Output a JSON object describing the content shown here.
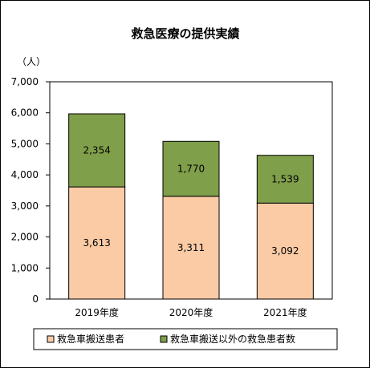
{
  "chart_data": {
    "type": "bar",
    "stacked": true,
    "title": "救急医療の提供実績",
    "unit_label": "（人）",
    "categories": [
      "2019年度",
      "2020年度",
      "2021年度"
    ],
    "series": [
      {
        "name": "救急車搬送患者",
        "values": [
          3613,
          3311,
          3092
        ],
        "labels": [
          "3,613",
          "3,311",
          "3,092"
        ],
        "color": "#FBCBA6"
      },
      {
        "name": "救急車搬送以外の救急患者数",
        "values": [
          2354,
          1770,
          1539
        ],
        "labels": [
          "2,354",
          "1,770",
          "1,539"
        ],
        "color": "#7F9F4A"
      }
    ],
    "ylim": [
      0,
      7000
    ],
    "yticks": [
      0,
      1000,
      2000,
      3000,
      4000,
      5000,
      6000,
      7000
    ],
    "ytick_labels": [
      "0",
      "1,000",
      "2,000",
      "3,000",
      "4,000",
      "5,000",
      "6,000",
      "7,000"
    ],
    "grid": false,
    "legend_position": "bottom"
  }
}
